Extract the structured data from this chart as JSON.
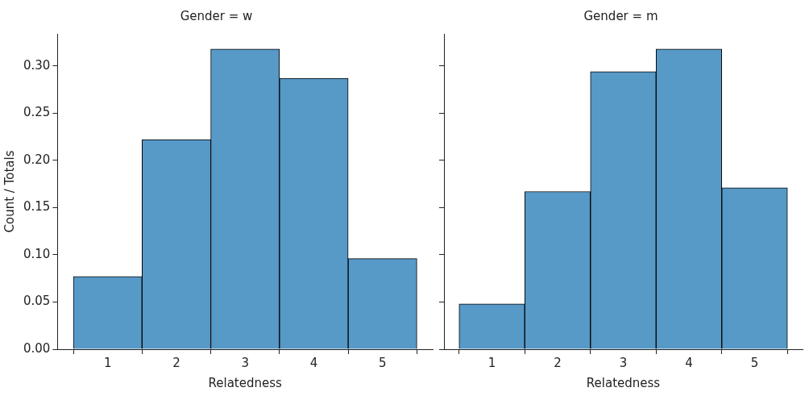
{
  "chart_data": [
    {
      "type": "histogram",
      "title": "Gender = w",
      "xlabel": "Relatedness",
      "ylabel": "Count / Totals",
      "bins": [
        0.5,
        1.5,
        2.5,
        3.5,
        4.5,
        5.5
      ],
      "values": [
        0.077,
        0.222,
        0.318,
        0.287,
        0.096
      ],
      "color": "#5799c7",
      "xlim": [
        0.27,
        5.73
      ],
      "xticks": [
        1,
        2,
        3,
        4,
        5
      ],
      "ylim": [
        0,
        0.334
      ],
      "yticks": [
        {
          "value": 0,
          "label": "0.00"
        },
        {
          "value": 0.05,
          "label": "0.05"
        },
        {
          "value": 0.1,
          "label": "0.10"
        },
        {
          "value": 0.15,
          "label": "0.15"
        },
        {
          "value": 0.2,
          "label": "0.20"
        },
        {
          "value": 0.25,
          "label": "0.25"
        },
        {
          "value": 0.3,
          "label": "0.30"
        }
      ],
      "grid": false,
      "legend": false
    },
    {
      "type": "histogram",
      "title": "Gender = m",
      "xlabel": "Relatedness",
      "bins": [
        0.5,
        1.5,
        2.5,
        3.5,
        4.5,
        5.5
      ],
      "values": [
        0.048,
        0.167,
        0.294,
        0.318,
        0.171
      ],
      "color": "#5799c7",
      "xlim": [
        0.27,
        5.73
      ],
      "xticks": [
        1,
        2,
        3,
        4,
        5
      ],
      "ylim": [
        0,
        0.334
      ],
      "yticks": [
        {
          "value": 0,
          "label": null
        },
        {
          "value": 0.05,
          "label": null
        },
        {
          "value": 0.1,
          "label": null
        },
        {
          "value": 0.15,
          "label": null
        },
        {
          "value": 0.2,
          "label": null
        },
        {
          "value": 0.25,
          "label": null
        },
        {
          "value": 0.3,
          "label": null
        }
      ],
      "grid": false,
      "legend": false,
      "tick_labels": "x"
    }
  ]
}
